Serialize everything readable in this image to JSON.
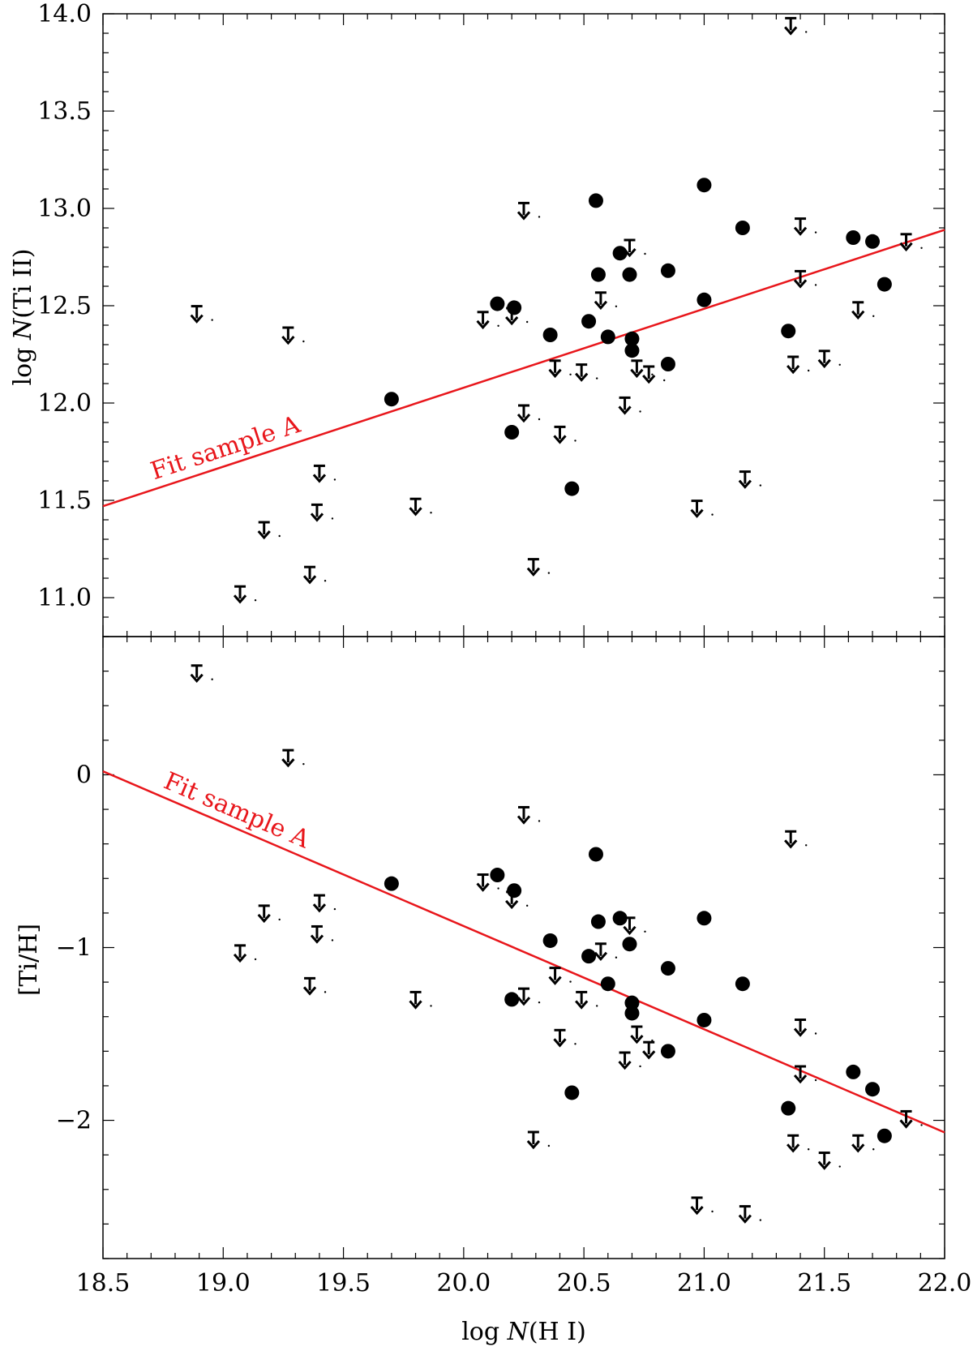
{
  "chart_data": [
    {
      "type": "scatter",
      "panel": "top",
      "ylabel": "log N(Ti II)",
      "xlim": [
        18.5,
        22.0
      ],
      "ylim": [
        10.8,
        14.0
      ],
      "yticks": [
        "11.0",
        "11.5",
        "12.0",
        "12.5",
        "13.0",
        "13.5",
        "14.0"
      ],
      "detections": [
        {
          "x": 19.7,
          "y": 12.02
        },
        {
          "x": 20.14,
          "y": 12.51
        },
        {
          "x": 20.21,
          "y": 12.49
        },
        {
          "x": 20.2,
          "y": 11.85
        },
        {
          "x": 20.36,
          "y": 12.35
        },
        {
          "x": 20.45,
          "y": 11.56
        },
        {
          "x": 20.52,
          "y": 12.42
        },
        {
          "x": 20.55,
          "y": 13.04
        },
        {
          "x": 20.56,
          "y": 12.66
        },
        {
          "x": 20.6,
          "y": 12.34
        },
        {
          "x": 20.65,
          "y": 12.77
        },
        {
          "x": 20.69,
          "y": 12.66
        },
        {
          "x": 20.7,
          "y": 12.33
        },
        {
          "x": 20.7,
          "y": 12.27
        },
        {
          "x": 20.85,
          "y": 12.68
        },
        {
          "x": 20.85,
          "y": 12.2
        },
        {
          "x": 21.0,
          "y": 13.12
        },
        {
          "x": 21.0,
          "y": 12.53
        },
        {
          "x": 21.16,
          "y": 12.9
        },
        {
          "x": 21.35,
          "y": 12.37
        },
        {
          "x": 21.62,
          "y": 12.85
        },
        {
          "x": 21.7,
          "y": 12.83
        },
        {
          "x": 21.75,
          "y": 12.61
        }
      ],
      "upper_limits": [
        {
          "x": 18.89,
          "y": 12.46
        },
        {
          "x": 19.07,
          "y": 11.02
        },
        {
          "x": 19.17,
          "y": 11.35
        },
        {
          "x": 19.27,
          "y": 12.35
        },
        {
          "x": 19.36,
          "y": 11.12
        },
        {
          "x": 19.39,
          "y": 11.44
        },
        {
          "x": 19.4,
          "y": 11.64
        },
        {
          "x": 19.8,
          "y": 11.47
        },
        {
          "x": 20.08,
          "y": 12.43
        },
        {
          "x": 20.2,
          "y": 12.45
        },
        {
          "x": 20.25,
          "y": 12.99
        },
        {
          "x": 20.25,
          "y": 11.95
        },
        {
          "x": 20.29,
          "y": 11.16
        },
        {
          "x": 20.38,
          "y": 12.18
        },
        {
          "x": 20.4,
          "y": 11.84
        },
        {
          "x": 20.49,
          "y": 12.16
        },
        {
          "x": 20.57,
          "y": 12.53
        },
        {
          "x": 20.67,
          "y": 11.99
        },
        {
          "x": 20.69,
          "y": 12.8
        },
        {
          "x": 20.72,
          "y": 12.18
        },
        {
          "x": 20.77,
          "y": 12.15
        },
        {
          "x": 20.97,
          "y": 11.46
        },
        {
          "x": 21.17,
          "y": 11.61
        },
        {
          "x": 21.36,
          "y": 13.94
        },
        {
          "x": 21.37,
          "y": 12.2
        },
        {
          "x": 21.4,
          "y": 12.91
        },
        {
          "x": 21.4,
          "y": 12.64
        },
        {
          "x": 21.5,
          "y": 12.23
        },
        {
          "x": 21.64,
          "y": 12.48
        },
        {
          "x": 21.84,
          "y": 12.83
        }
      ],
      "fit": {
        "label": "Fit sample A",
        "x": [
          18.5,
          22.0
        ],
        "y": [
          11.47,
          12.89
        ]
      },
      "color_fit": "#e8161b"
    },
    {
      "type": "scatter",
      "panel": "bottom",
      "xlabel": "log N(H I)",
      "ylabel": "[Ti/H]",
      "xlim": [
        18.5,
        22.0
      ],
      "ylim": [
        -2.8,
        0.8
      ],
      "xticks": [
        "18.5",
        "19.0",
        "19.5",
        "20.0",
        "20.5",
        "21.0",
        "21.5",
        "22.0"
      ],
      "yticks": [
        "−2",
        "−1",
        "0"
      ],
      "detections": [
        {
          "x": 19.7,
          "y": -0.63
        },
        {
          "x": 20.14,
          "y": -0.58
        },
        {
          "x": 20.21,
          "y": -0.67
        },
        {
          "x": 20.2,
          "y": -1.3
        },
        {
          "x": 20.36,
          "y": -0.96
        },
        {
          "x": 20.45,
          "y": -1.84
        },
        {
          "x": 20.52,
          "y": -1.05
        },
        {
          "x": 20.55,
          "y": -0.46
        },
        {
          "x": 20.56,
          "y": -0.85
        },
        {
          "x": 20.6,
          "y": -1.21
        },
        {
          "x": 20.65,
          "y": -0.83
        },
        {
          "x": 20.69,
          "y": -0.98
        },
        {
          "x": 20.7,
          "y": -1.32
        },
        {
          "x": 20.7,
          "y": -1.38
        },
        {
          "x": 20.85,
          "y": -1.12
        },
        {
          "x": 20.85,
          "y": -1.6
        },
        {
          "x": 21.0,
          "y": -0.83
        },
        {
          "x": 21.0,
          "y": -1.42
        },
        {
          "x": 21.16,
          "y": -1.21
        },
        {
          "x": 21.35,
          "y": -1.93
        },
        {
          "x": 21.62,
          "y": -1.72
        },
        {
          "x": 21.7,
          "y": -1.82
        },
        {
          "x": 21.75,
          "y": -2.09
        }
      ],
      "upper_limits": [
        {
          "x": 18.89,
          "y": 0.59
        },
        {
          "x": 19.07,
          "y": -1.03
        },
        {
          "x": 19.17,
          "y": -0.8
        },
        {
          "x": 19.27,
          "y": 0.1
        },
        {
          "x": 19.36,
          "y": -1.22
        },
        {
          "x": 19.39,
          "y": -0.92
        },
        {
          "x": 19.4,
          "y": -0.74
        },
        {
          "x": 19.8,
          "y": -1.3
        },
        {
          "x": 20.08,
          "y": -0.62
        },
        {
          "x": 20.2,
          "y": -0.72
        },
        {
          "x": 20.25,
          "y": -0.23
        },
        {
          "x": 20.25,
          "y": -1.28
        },
        {
          "x": 20.29,
          "y": -2.11
        },
        {
          "x": 20.38,
          "y": -1.16
        },
        {
          "x": 20.4,
          "y": -1.52
        },
        {
          "x": 20.49,
          "y": -1.3
        },
        {
          "x": 20.57,
          "y": -1.02
        },
        {
          "x": 20.67,
          "y": -1.65
        },
        {
          "x": 20.69,
          "y": -0.87
        },
        {
          "x": 20.72,
          "y": -1.5
        },
        {
          "x": 20.77,
          "y": -1.59
        },
        {
          "x": 20.97,
          "y": -2.49
        },
        {
          "x": 21.17,
          "y": -2.54
        },
        {
          "x": 21.36,
          "y": -0.37
        },
        {
          "x": 21.37,
          "y": -2.13
        },
        {
          "x": 21.4,
          "y": -1.46
        },
        {
          "x": 21.4,
          "y": -1.73
        },
        {
          "x": 21.5,
          "y": -2.23
        },
        {
          "x": 21.64,
          "y": -2.13
        },
        {
          "x": 21.84,
          "y": -1.99
        }
      ],
      "fit": {
        "label": "Fit sample A",
        "x": [
          18.5,
          22.0
        ],
        "y": [
          0.02,
          -2.07
        ]
      },
      "color_fit": "#e8161b"
    }
  ]
}
